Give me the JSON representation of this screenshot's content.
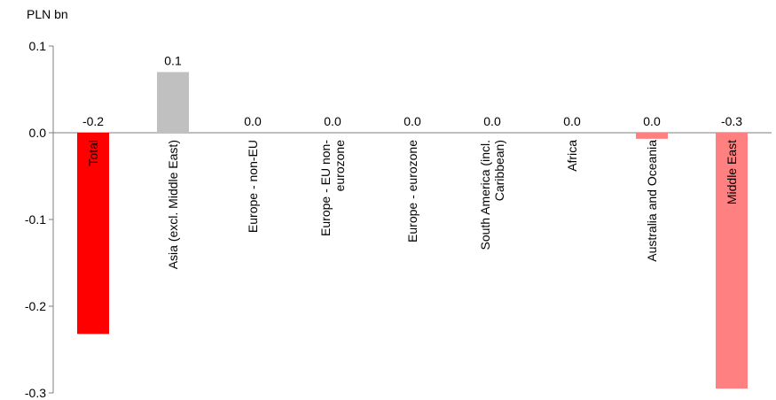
{
  "chart_data": {
    "type": "bar",
    "unit_label": "PLN bn",
    "categories": [
      "Total",
      "Asia (excl. Middle East)",
      "Europe - non-EU",
      "Europe - EU non-\neurozone",
      "Europe - eurozone",
      "South America (incl.\nCaribbean)",
      "Africa",
      "Australia and Oceania",
      "Middle East"
    ],
    "values": [
      -0.232,
      0.07,
      0.0,
      0.0,
      0.0,
      0.0,
      0.0,
      -0.007,
      -0.295
    ],
    "data_labels": [
      "-0.2",
      "0.1",
      "0.0",
      "0.0",
      "0.0",
      "0.0",
      "0.0",
      "0.0",
      "-0.3"
    ],
    "bar_colors": [
      "#ff0000",
      "#c0c0c0",
      "#c0c0c0",
      "#c0c0c0",
      "#c0c0c0",
      "#c0c0c0",
      "#c0c0c0",
      "#ff8080",
      "#ff8080"
    ],
    "ylim": [
      -0.3,
      0.1
    ],
    "yticks": [
      0.1,
      0.0,
      -0.1,
      -0.2,
      -0.3
    ],
    "ytick_labels": [
      "0.1",
      "0.0",
      "-0.1",
      "-0.2",
      "-0.3"
    ],
    "grid": false,
    "legend": "none"
  }
}
